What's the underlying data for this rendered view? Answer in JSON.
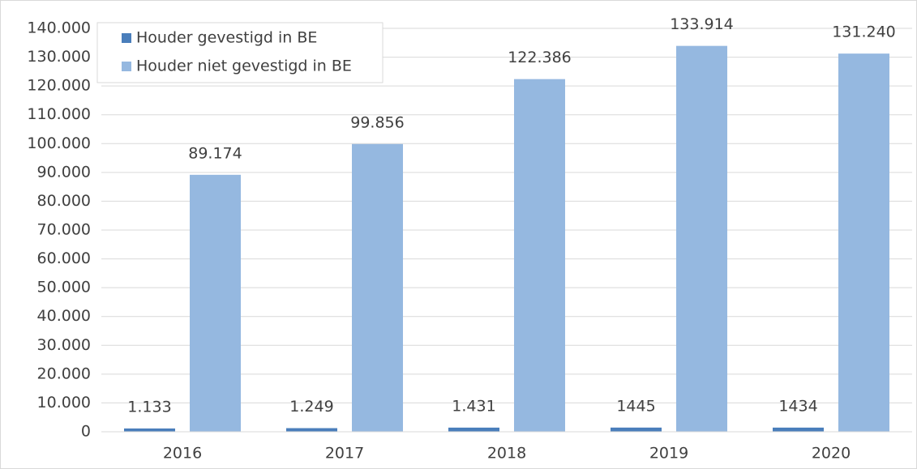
{
  "chart_data": {
    "type": "bar",
    "categories": [
      "2016",
      "2017",
      "2018",
      "2019",
      "2020"
    ],
    "series": [
      {
        "name": "Houder gevestigd in BE",
        "color": "#4a7ebb",
        "values": [
          1133,
          1249,
          1431,
          1445,
          1434
        ],
        "value_labels": [
          "1.133",
          "1.249",
          "1.431",
          "1445",
          "1434"
        ]
      },
      {
        "name": "Houder niet gevestigd in BE",
        "color": "#95b8e0",
        "values": [
          89174,
          99856,
          122386,
          133914,
          131240
        ],
        "value_labels": [
          "89.174",
          "99.856",
          "122.386",
          "133.914",
          "131.240"
        ]
      }
    ],
    "ylim": [
      0,
      140000
    ],
    "yticks": [
      0,
      {
        "value": 10000,
        "label": "10.000"
      },
      {
        "value": 20000,
        "label": "20.000"
      },
      {
        "value": 30000,
        "label": "30.000"
      },
      {
        "value": 40000,
        "label": "40.000"
      },
      {
        "value": 50000,
        "label": "50.000"
      },
      {
        "value": 60000,
        "label": "60.000"
      },
      {
        "value": 70000,
        "label": "70.000"
      },
      {
        "value": 80000,
        "label": "80.000"
      },
      {
        "value": 90000,
        "label": "90.000"
      },
      {
        "value": 100000,
        "label": "100.000"
      },
      {
        "value": 110000,
        "label": "110.000"
      },
      {
        "value": 120000,
        "label": "120.000"
      },
      {
        "value": 130000,
        "label": "130.000"
      },
      {
        "value": 140000,
        "label": "140.000"
      }
    ],
    "grid": true,
    "legend": "top-left"
  }
}
